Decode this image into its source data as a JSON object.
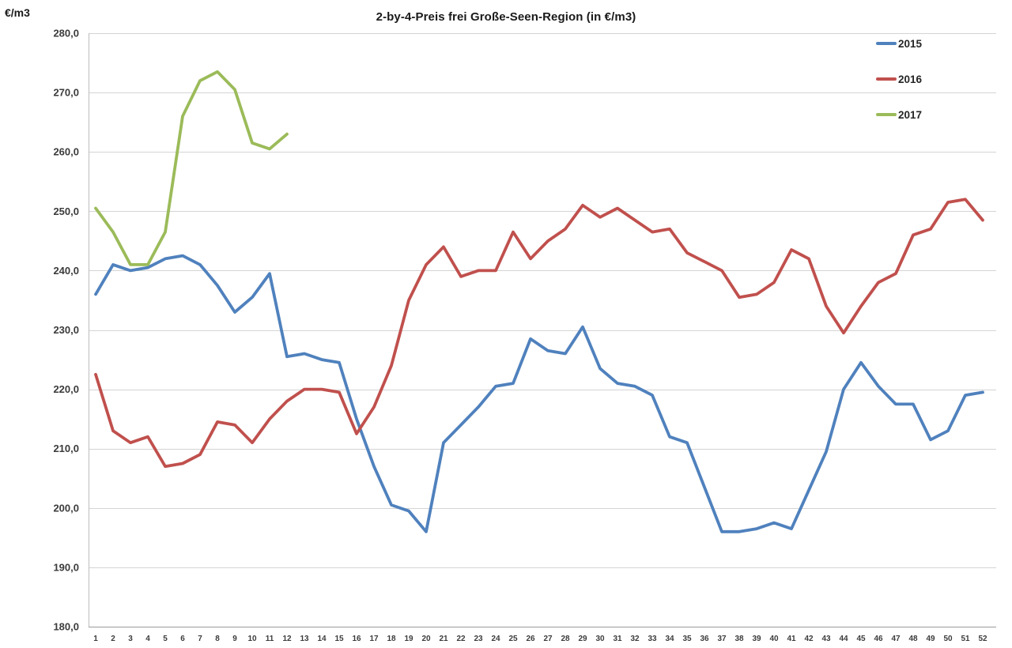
{
  "chart": {
    "title": "2-by-4-Preis frei Große-Seen-Region (in €/m3)",
    "y_axis_unit": "€/m3"
  },
  "chart_data": {
    "type": "line",
    "title": "2-by-4-Preis frei Große-Seen-Region (in €/m3)",
    "xlabel": "",
    "ylabel": "€/m3",
    "ylim": [
      180,
      280
    ],
    "y_ticks": [
      180,
      190,
      200,
      210,
      220,
      230,
      240,
      250,
      260,
      270,
      280
    ],
    "grid": true,
    "legend_position": "top-right",
    "x_labels": [
      1,
      2,
      3,
      4,
      5,
      6,
      7,
      8,
      9,
      10,
      11,
      12,
      13,
      14,
      15,
      16,
      17,
      18,
      19,
      20,
      21,
      22,
      23,
      24,
      25,
      26,
      27,
      28,
      29,
      30,
      31,
      32,
      33,
      34,
      35,
      36,
      37,
      38,
      39,
      40,
      41,
      42,
      43,
      44,
      45,
      46,
      47,
      48,
      49,
      50,
      51,
      52
    ],
    "series": [
      {
        "name": "2015",
        "color": "#4F81BD",
        "values": [
          236,
          241,
          240,
          240.5,
          242,
          242.5,
          241,
          237.5,
          233,
          235.5,
          239.5,
          225.5,
          226,
          225,
          224.5,
          215,
          207,
          200.5,
          199.5,
          196,
          211,
          214,
          217,
          220.5,
          221,
          228.5,
          226.5,
          226,
          230.5,
          223.5,
          221,
          220.5,
          219,
          212,
          211,
          203.5,
          196,
          196,
          196.5,
          197.5,
          196.5,
          203,
          209.5,
          220,
          224.5,
          220.5,
          217.5,
          217.5,
          211.5,
          213,
          219,
          219.5
        ]
      },
      {
        "name": "2016",
        "color": "#C0504D",
        "values": [
          222.5,
          213,
          211,
          212,
          207,
          207.5,
          209,
          214.5,
          214,
          211,
          215,
          218,
          220,
          220,
          219.5,
          212.5,
          217,
          224,
          235,
          241,
          244,
          239,
          240,
          240,
          246.5,
          242,
          245,
          247,
          251,
          249,
          250.5,
          248.5,
          246.5,
          247,
          243,
          241.5,
          240,
          235.5,
          236,
          238,
          243.5,
          242,
          234,
          229.5,
          234,
          238,
          239.5,
          246,
          247,
          251.5,
          252,
          248.5
        ]
      },
      {
        "name": "2017",
        "color": "#9BBB59",
        "values": [
          250.5,
          246.5,
          241,
          241,
          246.5,
          266,
          272,
          273.5,
          270.5,
          261.5,
          260.5,
          263
        ]
      }
    ]
  }
}
